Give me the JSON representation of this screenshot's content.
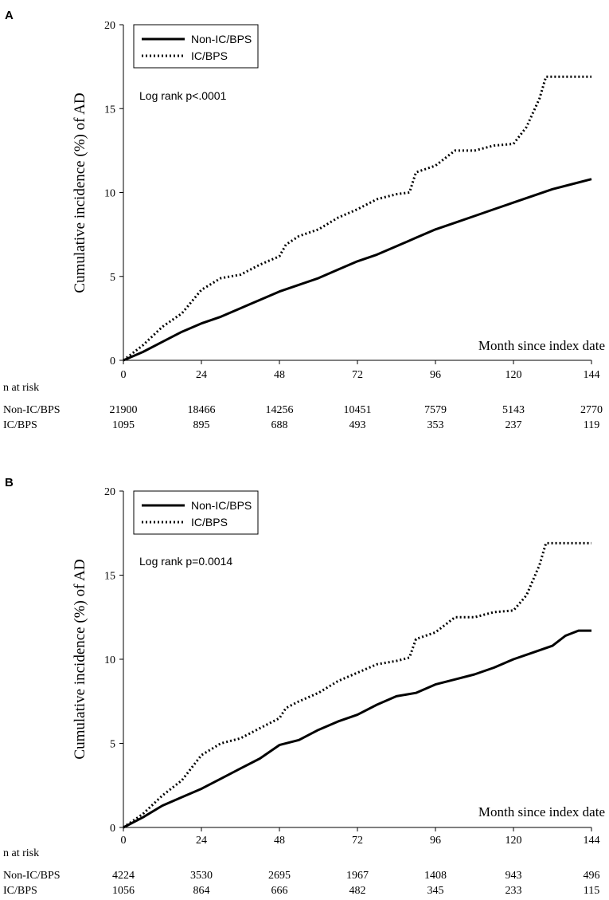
{
  "chart_data": [
    {
      "type": "line",
      "panel_label": "A",
      "ylabel": "Cumulative incidence (%) of AD",
      "xlabel": "Month since index date",
      "xticks": [
        0,
        24,
        48,
        72,
        96,
        120,
        144
      ],
      "yticks": [
        0,
        5,
        10,
        15,
        20
      ],
      "xlim": [
        0,
        144
      ],
      "ylim": [
        0,
        20
      ],
      "legend": {
        "placement": "top-left",
        "entries": [
          "Non-IC/BPS",
          "IC/BPS"
        ]
      },
      "annotation": "Log rank p<.0001",
      "series": [
        {
          "name": "Non-IC/BPS",
          "style": "solid",
          "x": [
            0,
            6,
            12,
            18,
            24,
            30,
            36,
            42,
            48,
            54,
            60,
            66,
            72,
            78,
            84,
            90,
            96,
            102,
            108,
            114,
            120,
            126,
            132,
            138,
            144
          ],
          "y": [
            0,
            0.5,
            1.1,
            1.7,
            2.2,
            2.6,
            3.1,
            3.6,
            4.1,
            4.5,
            4.9,
            5.4,
            5.9,
            6.3,
            6.8,
            7.3,
            7.8,
            8.2,
            8.6,
            9.0,
            9.4,
            9.8,
            10.2,
            10.5,
            10.8
          ]
        },
        {
          "name": "IC/BPS",
          "style": "dotted",
          "x": [
            0,
            6,
            12,
            18,
            24,
            30,
            36,
            42,
            48,
            50,
            54,
            60,
            66,
            72,
            78,
            84,
            88,
            90,
            96,
            102,
            108,
            114,
            120,
            124,
            128,
            130,
            138,
            144
          ],
          "y": [
            0,
            0.9,
            2.0,
            2.8,
            4.2,
            4.9,
            5.1,
            5.7,
            6.2,
            6.9,
            7.4,
            7.8,
            8.5,
            9.0,
            9.6,
            9.9,
            10.0,
            11.2,
            11.6,
            12.5,
            12.5,
            12.8,
            12.9,
            13.9,
            15.6,
            16.9,
            16.9,
            16.9
          ]
        }
      ],
      "risk_table": {
        "header": "n at risk",
        "rows": [
          {
            "label": "Non-IC/BPS",
            "values": [
              "21900",
              "18466",
              "14256",
              "10451",
              "7579",
              "5143",
              "2770"
            ]
          },
          {
            "label": "IC/BPS",
            "values": [
              "1095",
              "895",
              "688",
              "493",
              "353",
              "237",
              "119"
            ]
          }
        ]
      }
    },
    {
      "type": "line",
      "panel_label": "B",
      "ylabel": "Cumulative incidence (%) of AD",
      "xlabel": "Month since index date",
      "xticks": [
        0,
        24,
        48,
        72,
        96,
        120,
        144
      ],
      "yticks": [
        0,
        5,
        10,
        15,
        20
      ],
      "xlim": [
        0,
        144
      ],
      "ylim": [
        0,
        20
      ],
      "legend": {
        "placement": "top-left",
        "entries": [
          "Non-IC/BPS",
          "IC/BPS"
        ]
      },
      "annotation": "Log rank p=0.0014",
      "series": [
        {
          "name": "Non-IC/BPS",
          "style": "solid",
          "x": [
            0,
            6,
            12,
            18,
            24,
            30,
            36,
            42,
            48,
            54,
            60,
            66,
            72,
            78,
            84,
            90,
            96,
            102,
            108,
            114,
            120,
            126,
            132,
            136,
            140,
            144
          ],
          "y": [
            0,
            0.6,
            1.3,
            1.8,
            2.3,
            2.9,
            3.5,
            4.1,
            4.9,
            5.2,
            5.8,
            6.3,
            6.7,
            7.3,
            7.8,
            8.0,
            8.5,
            8.8,
            9.1,
            9.5,
            10.0,
            10.4,
            10.8,
            11.4,
            11.7,
            11.7
          ]
        },
        {
          "name": "IC/BPS",
          "style": "dotted",
          "x": [
            0,
            6,
            12,
            18,
            24,
            30,
            36,
            42,
            48,
            50,
            54,
            60,
            66,
            72,
            78,
            84,
            88,
            90,
            96,
            102,
            108,
            114,
            120,
            124,
            128,
            130,
            138,
            144
          ],
          "y": [
            0,
            0.8,
            1.9,
            2.8,
            4.3,
            5.0,
            5.3,
            5.9,
            6.5,
            7.1,
            7.5,
            8.0,
            8.7,
            9.2,
            9.7,
            9.9,
            10.1,
            11.2,
            11.6,
            12.5,
            12.5,
            12.8,
            12.9,
            13.8,
            15.6,
            16.9,
            16.9,
            16.9
          ]
        }
      ],
      "risk_table": {
        "header": "n at risk",
        "rows": [
          {
            "label": "Non-IC/BPS",
            "values": [
              "4224",
              "3530",
              "2695",
              "1967",
              "1408",
              "943",
              "496"
            ]
          },
          {
            "label": "IC/BPS",
            "values": [
              "1056",
              "864",
              "666",
              "482",
              "345",
              "233",
              "115"
            ]
          }
        ]
      }
    }
  ]
}
